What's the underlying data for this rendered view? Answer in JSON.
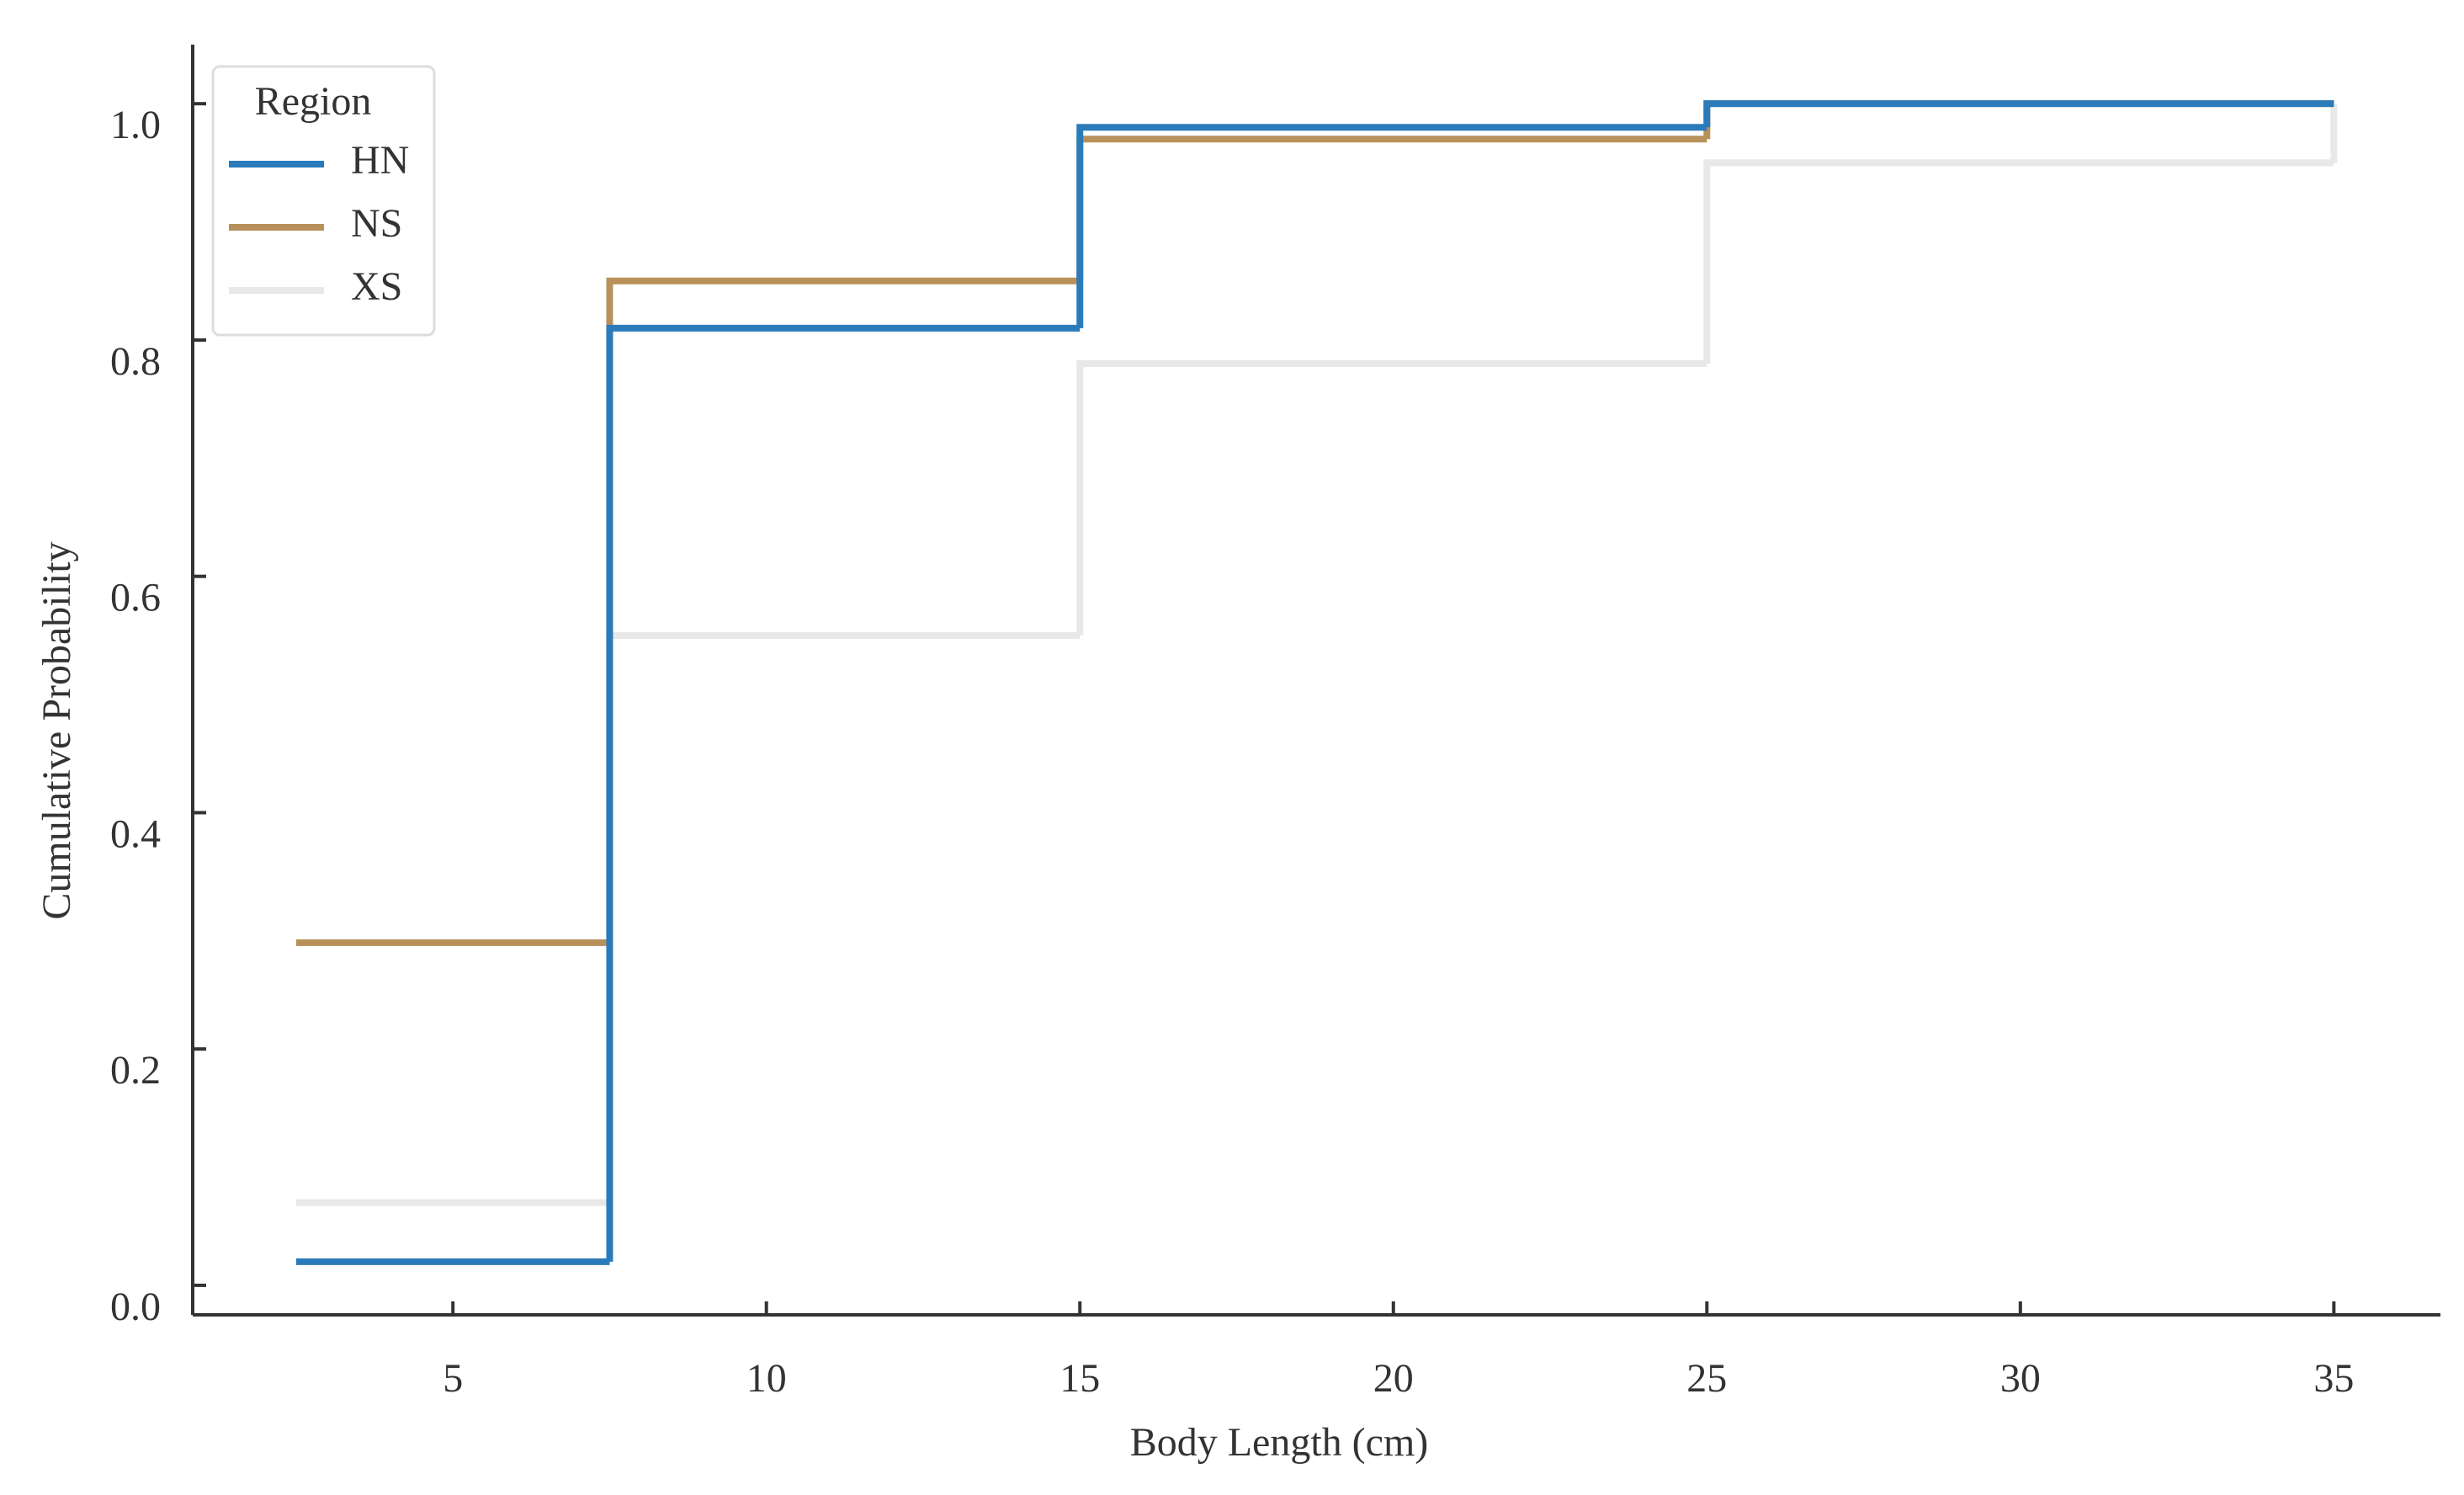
{
  "chart_data": {
    "type": "step",
    "x_label": "Body Length (cm)",
    "y_label": "Cumulative Probability",
    "legend_title": "Region",
    "legend_position": "upper left",
    "x": [
      2.5,
      7.5,
      15,
      25,
      35
    ],
    "series": [
      {
        "name": "HN",
        "color": "#2b7bba",
        "values": [
          0.02,
          0.81,
          0.98,
          1.0,
          1.0
        ]
      },
      {
        "name": "NS",
        "color": "#b8915a",
        "values": [
          0.29,
          0.85,
          0.97,
          1.0,
          1.0
        ]
      },
      {
        "name": "XS",
        "color": "#e8e8e8",
        "values": [
          0.07,
          0.55,
          0.78,
          0.95,
          1.0
        ]
      }
    ],
    "xlim": [
      0.85,
      36.7
    ],
    "ylim": [
      -0.025,
      1.05
    ],
    "xticks": [
      5,
      10,
      15,
      20,
      25,
      30,
      35
    ],
    "yticks": [
      {
        "value": 0,
        "label": "0.0"
      },
      0.2,
      0.4,
      0.6,
      0.8,
      {
        "value": 1,
        "label": "1.0"
      }
    ],
    "grid": false
  }
}
